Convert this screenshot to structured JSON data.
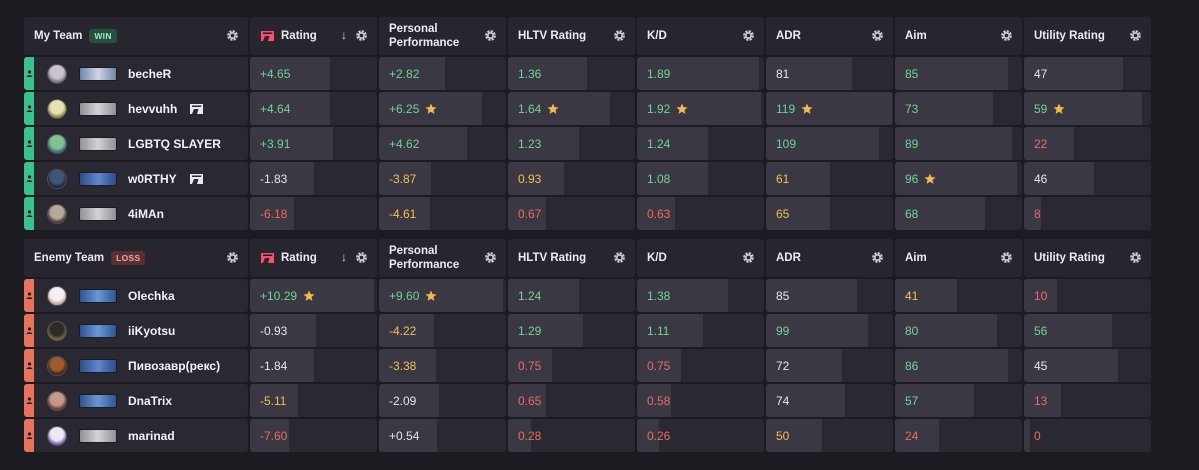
{
  "colors": {
    "green": "#6fd690",
    "red": "#ee6b60",
    "yellow": "#f1c04f",
    "neutral": "#e6e4ec",
    "win_stripe": "#37c48c",
    "loss_stripe": "#e8735b",
    "star": "#f3b74a"
  },
  "teams": [
    {
      "title": "My Team",
      "result": "WIN",
      "result_class": "win",
      "columns": [
        {
          "label": "Rating",
          "logo": true,
          "sort": "↓"
        },
        {
          "label": "Personal Performance"
        },
        {
          "label": "HLTV Rating"
        },
        {
          "label": "K/D"
        },
        {
          "label": "ADR"
        },
        {
          "label": "Aim"
        },
        {
          "label": "Utility Rating"
        }
      ],
      "players": [
        {
          "name": "becheR",
          "avatar": "av1",
          "rank": "r-silver",
          "faceit": false,
          "stats": [
            {
              "v": "+4.65",
              "c": "green",
              "f": 0.63
            },
            {
              "v": "+2.82",
              "c": "green",
              "f": 0.52
            },
            {
              "v": "1.36",
              "c": "green",
              "f": 0.62
            },
            {
              "v": "1.89",
              "c": "green",
              "f": 0.96
            },
            {
              "v": "81",
              "c": "neutral",
              "f": 0.68
            },
            {
              "v": "85",
              "c": "green",
              "f": 0.89
            },
            {
              "v": "47",
              "c": "neutral",
              "f": 0.78
            }
          ]
        },
        {
          "name": "hevvuhh",
          "avatar": "av2",
          "rank": "r-grey",
          "faceit": true,
          "stats": [
            {
              "v": "+4.64",
              "c": "green",
              "f": 0.63
            },
            {
              "v": "+6.25",
              "c": "green",
              "f": 0.81,
              "star": true
            },
            {
              "v": "1.64",
              "c": "green",
              "f": 0.8,
              "star": true
            },
            {
              "v": "1.92",
              "c": "green",
              "f": 0.98,
              "star": true
            },
            {
              "v": "119",
              "c": "green",
              "f": 0.99,
              "star": true
            },
            {
              "v": "73",
              "c": "green",
              "f": 0.77
            },
            {
              "v": "59",
              "c": "green",
              "f": 0.93,
              "star": true
            }
          ]
        },
        {
          "name": "LGBTQ SLAYER",
          "avatar": "av3",
          "rank": "r-grey",
          "faceit": false,
          "stats": [
            {
              "v": "+3.91",
              "c": "green",
              "f": 0.65
            },
            {
              "v": "+4.62",
              "c": "green",
              "f": 0.69
            },
            {
              "v": "1.23",
              "c": "green",
              "f": 0.56
            },
            {
              "v": "1.24",
              "c": "green",
              "f": 0.56
            },
            {
              "v": "109",
              "c": "green",
              "f": 0.89
            },
            {
              "v": "89",
              "c": "green",
              "f": 0.92
            },
            {
              "v": "22",
              "c": "red",
              "f": 0.39
            }
          ]
        },
        {
          "name": "w0RTHY",
          "avatar": "av4",
          "rank": "r-blue",
          "faceit": true,
          "stats": [
            {
              "v": "-1.83",
              "c": "neutral",
              "f": 0.5
            },
            {
              "v": "-3.87",
              "c": "yellow",
              "f": 0.41
            },
            {
              "v": "0.93",
              "c": "yellow",
              "f": 0.44
            },
            {
              "v": "1.08",
              "c": "green",
              "f": 0.56
            },
            {
              "v": "61",
              "c": "yellow",
              "f": 0.5
            },
            {
              "v": "96",
              "c": "green",
              "f": 0.96,
              "star": true
            },
            {
              "v": "46",
              "c": "neutral",
              "f": 0.55
            }
          ]
        },
        {
          "name": "4iMAn",
          "avatar": "av5",
          "rank": "r-grey",
          "faceit": false,
          "stats": [
            {
              "v": "-6.18",
              "c": "red",
              "f": 0.35
            },
            {
              "v": "-4.61",
              "c": "yellow",
              "f": 0.4
            },
            {
              "v": "0.67",
              "c": "red",
              "f": 0.3
            },
            {
              "v": "0.63",
              "c": "red",
              "f": 0.3
            },
            {
              "v": "65",
              "c": "yellow",
              "f": 0.5
            },
            {
              "v": "68",
              "c": "green",
              "f": 0.71
            },
            {
              "v": "8",
              "c": "red",
              "f": 0.13
            }
          ]
        }
      ]
    },
    {
      "title": "Enemy Team",
      "result": "LOSS",
      "result_class": "loss",
      "columns": [
        {
          "label": "Rating",
          "logo": true,
          "sort": "↓"
        },
        {
          "label": "Personal Performance"
        },
        {
          "label": "HLTV Rating"
        },
        {
          "label": "K/D"
        },
        {
          "label": "ADR"
        },
        {
          "label": "Aim"
        },
        {
          "label": "Utility Rating"
        }
      ],
      "players": [
        {
          "name": "Olechka",
          "avatar": "av6",
          "rank": "r-blue2",
          "faceit": false,
          "stats": [
            {
              "v": "+10.29",
              "c": "green",
              "f": 0.98,
              "star": true
            },
            {
              "v": "+9.60",
              "c": "green",
              "f": 0.98,
              "star": true
            },
            {
              "v": "1.24",
              "c": "green",
              "f": 0.56
            },
            {
              "v": "1.38",
              "c": "green",
              "f": 0.72
            },
            {
              "v": "85",
              "c": "neutral",
              "f": 0.72
            },
            {
              "v": "41",
              "c": "yellow",
              "f": 0.49
            },
            {
              "v": "10",
              "c": "red",
              "f": 0.26
            }
          ]
        },
        {
          "name": "iiKyotsu",
          "avatar": "av7",
          "rank": "r-blue2",
          "faceit": false,
          "stats": [
            {
              "v": "-0.93",
              "c": "neutral",
              "f": 0.52
            },
            {
              "v": "-4.22",
              "c": "yellow",
              "f": 0.43
            },
            {
              "v": "1.29",
              "c": "green",
              "f": 0.59
            },
            {
              "v": "1.11",
              "c": "green",
              "f": 0.52
            },
            {
              "v": "99",
              "c": "green",
              "f": 0.8
            },
            {
              "v": "80",
              "c": "green",
              "f": 0.8
            },
            {
              "v": "56",
              "c": "green",
              "f": 0.69
            }
          ]
        },
        {
          "name": "Пивозавр(рекс)",
          "avatar": "av8",
          "rank": "r-blue",
          "faceit": false,
          "stats": [
            {
              "v": "-1.84",
              "c": "neutral",
              "f": 0.5
            },
            {
              "v": "-3.38",
              "c": "yellow",
              "f": 0.45
            },
            {
              "v": "0.75",
              "c": "red",
              "f": 0.35
            },
            {
              "v": "0.75",
              "c": "red",
              "f": 0.35
            },
            {
              "v": "72",
              "c": "neutral",
              "f": 0.6
            },
            {
              "v": "86",
              "c": "green",
              "f": 0.89
            },
            {
              "v": "45",
              "c": "neutral",
              "f": 0.74
            }
          ]
        },
        {
          "name": "DnaTrix",
          "avatar": "av9",
          "rank": "r-blue2",
          "faceit": false,
          "stats": [
            {
              "v": "-5.11",
              "c": "yellow",
              "f": 0.38
            },
            {
              "v": "-2.09",
              "c": "neutral",
              "f": 0.47
            },
            {
              "v": "0.65",
              "c": "red",
              "f": 0.3
            },
            {
              "v": "0.58",
              "c": "red",
              "f": 0.27
            },
            {
              "v": "74",
              "c": "neutral",
              "f": 0.62
            },
            {
              "v": "57",
              "c": "green",
              "f": 0.62
            },
            {
              "v": "13",
              "c": "red",
              "f": 0.29
            }
          ]
        },
        {
          "name": "marinad",
          "avatar": "av10",
          "rank": "r-grey",
          "faceit": false,
          "stats": [
            {
              "v": "-7.60",
              "c": "red",
              "f": 0.31
            },
            {
              "v": "+0.54",
              "c": "neutral",
              "f": 0.46
            },
            {
              "v": "0.28",
              "c": "red",
              "f": 0.18
            },
            {
              "v": "0.26",
              "c": "red",
              "f": 0.17
            },
            {
              "v": "50",
              "c": "yellow",
              "f": 0.44
            },
            {
              "v": "24",
              "c": "red",
              "f": 0.35
            },
            {
              "v": "0",
              "c": "red",
              "f": 0.05
            }
          ]
        }
      ]
    }
  ]
}
